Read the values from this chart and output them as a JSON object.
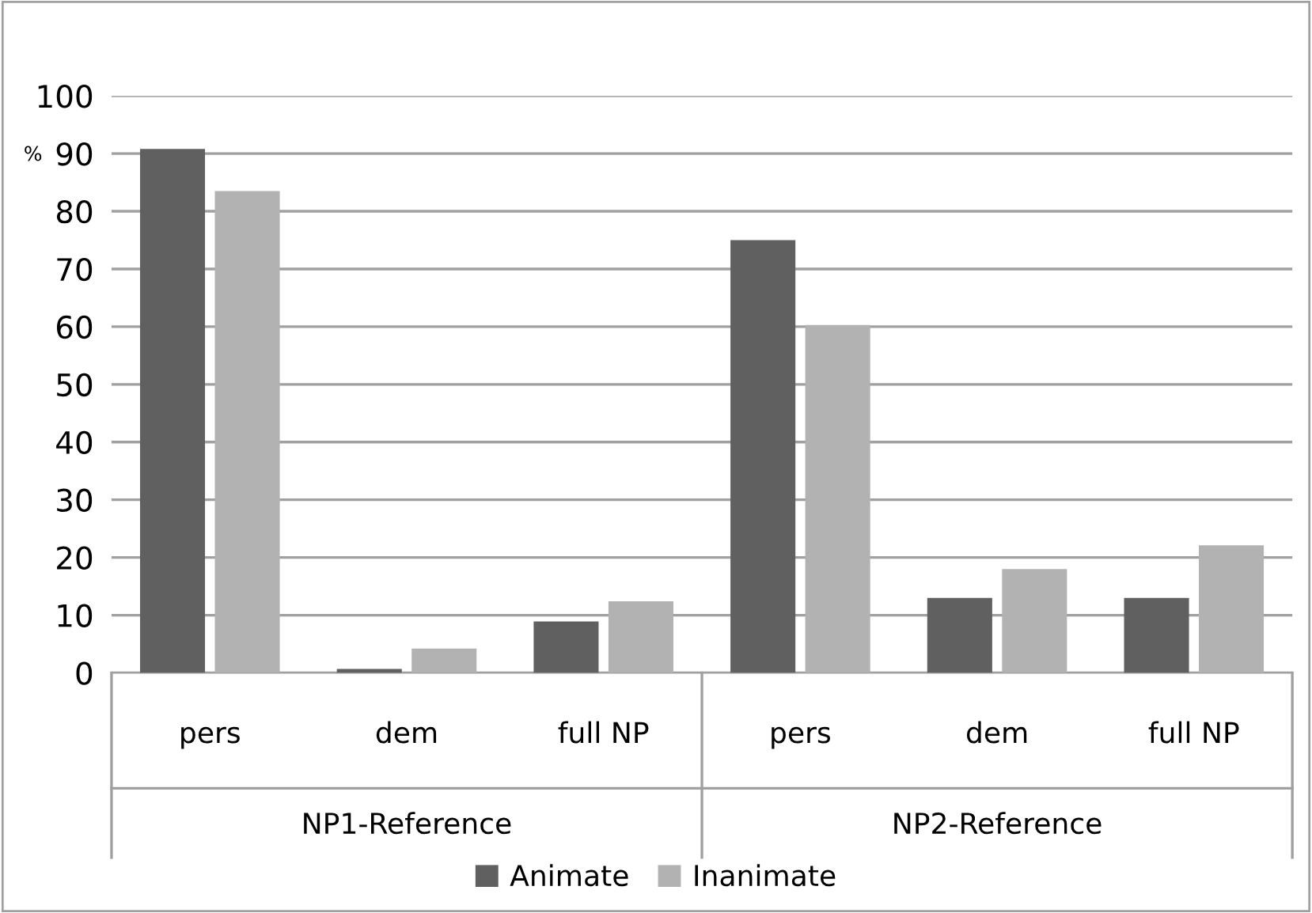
{
  "chart_data": {
    "type": "bar",
    "ylabel": "%",
    "categories": [
      "pers",
      "dem",
      "full NP",
      "pers",
      "dem",
      "full NP"
    ],
    "annotations": [
      "NP1-Reference",
      "NP2-Reference"
    ],
    "series": [
      {
        "name": "Animate",
        "color": "#606060",
        "values": [
          90.8,
          0.7,
          8.9,
          75.0,
          13.0,
          13.0
        ]
      },
      {
        "name": "Inanimate",
        "color": "#b2b2b2",
        "values": [
          83.5,
          4.2,
          12.4,
          60.3,
          18.0,
          22.1
        ]
      }
    ],
    "ylim": [
      0,
      100
    ],
    "yticks": [
      0,
      10,
      20,
      30,
      40,
      50,
      60,
      70,
      80,
      90,
      100
    ],
    "grid": "y",
    "legend": "bottom"
  }
}
